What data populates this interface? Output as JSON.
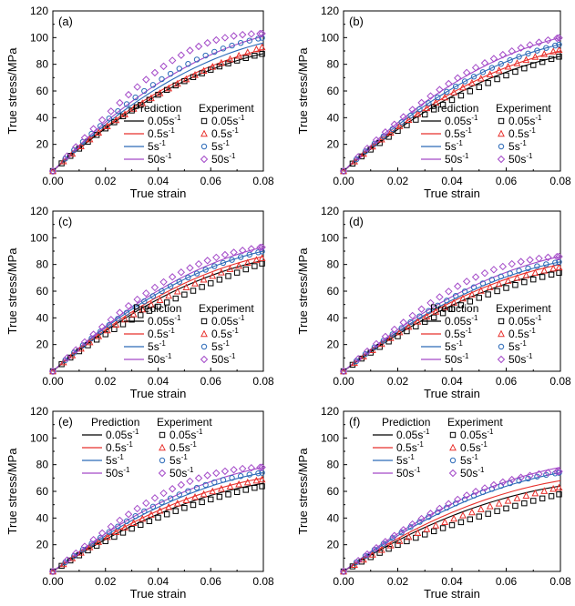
{
  "colors": {
    "c005": "#000000",
    "c05": "#e8302c",
    "c5": "#2c6ab8",
    "c50": "#a349c8"
  },
  "legend": {
    "pred_title": "Prediction",
    "exp_title": "Experiment",
    "unit": "s",
    "exp": "-1",
    "rates": [
      "0.05",
      "0.5",
      "5",
      "50"
    ]
  },
  "chart_data": [
    {
      "type": "line+scatter",
      "panel": "(a)",
      "legend_position": "bottom-right",
      "xlabel": "True strain",
      "ylabel": "True stress/MPa",
      "xlim": [
        0,
        0.08
      ],
      "ylim": [
        0,
        120
      ],
      "xticks": [
        "0.00",
        "0.02",
        "0.04",
        "0.06",
        "0.08"
      ],
      "yticks": [
        "20",
        "40",
        "60",
        "80",
        "100",
        "120"
      ],
      "series": [
        {
          "name": "0.05 s-1",
          "predicted_end": 88,
          "experiment_end": 88,
          "exp_scale": 1.0
        },
        {
          "name": "0.5 s-1",
          "predicted_end": 91,
          "experiment_end": 93,
          "exp_scale": 0.97
        },
        {
          "name": "5 s-1",
          "predicted_end": 96,
          "experiment_end": 100,
          "exp_scale": 1.02
        },
        {
          "name": "50 s-1",
          "predicted_end": 101,
          "experiment_end": 103,
          "exp_scale": 1.08
        }
      ]
    },
    {
      "type": "line+scatter",
      "panel": "(b)",
      "legend_position": "bottom-right",
      "xlabel": "True strain",
      "ylabel": "True stress/MPa",
      "xlim": [
        0,
        0.08
      ],
      "ylim": [
        0,
        120
      ],
      "xticks": [
        "0.00",
        "0.02",
        "0.04",
        "0.06",
        "0.08"
      ],
      "yticks": [
        "20",
        "40",
        "60",
        "80",
        "100",
        "120"
      ],
      "series": [
        {
          "name": "0.05 s-1",
          "predicted_end": 86,
          "experiment_end": 86,
          "exp_scale": 0.97
        },
        {
          "name": "0.5 s-1",
          "predicted_end": 90,
          "experiment_end": 91,
          "exp_scale": 0.99
        },
        {
          "name": "5 s-1",
          "predicted_end": 95,
          "experiment_end": 95,
          "exp_scale": 1.0
        },
        {
          "name": "50 s-1",
          "predicted_end": 100,
          "experiment_end": 100,
          "exp_scale": 1.02
        }
      ]
    },
    {
      "type": "line+scatter",
      "panel": "(c)",
      "legend_position": "bottom-right",
      "xlabel": "True strain",
      "ylabel": "True stress/MPa",
      "xlim": [
        0,
        0.08
      ],
      "ylim": [
        0,
        120
      ],
      "xticks": [
        "0.00",
        "0.02",
        "0.04",
        "0.06",
        "0.08"
      ],
      "yticks": [
        "20",
        "40",
        "60",
        "80",
        "100",
        "120"
      ],
      "series": [
        {
          "name": "0.05 s-1",
          "predicted_end": 83,
          "experiment_end": 81,
          "exp_scale": 0.95
        },
        {
          "name": "0.5 s-1",
          "predicted_end": 86,
          "experiment_end": 85,
          "exp_scale": 0.97
        },
        {
          "name": "5 s-1",
          "predicted_end": 90,
          "experiment_end": 90,
          "exp_scale": 1.0
        },
        {
          "name": "50 s-1",
          "predicted_end": 93,
          "experiment_end": 93,
          "exp_scale": 1.04
        }
      ]
    },
    {
      "type": "line+scatter",
      "panel": "(d)",
      "legend_position": "bottom-right",
      "xlabel": "True strain",
      "ylabel": "True stress/MPa",
      "xlim": [
        0,
        0.08
      ],
      "ylim": [
        0,
        120
      ],
      "xticks": [
        "0.00",
        "0.02",
        "0.04",
        "0.06",
        "0.08"
      ],
      "yticks": [
        "20",
        "40",
        "60",
        "80",
        "100",
        "120"
      ],
      "series": [
        {
          "name": "0.05 s-1",
          "predicted_end": 76,
          "experiment_end": 74,
          "exp_scale": 0.98
        },
        {
          "name": "0.5 s-1",
          "predicted_end": 80,
          "experiment_end": 78,
          "exp_scale": 1.0
        },
        {
          "name": "5 s-1",
          "predicted_end": 82,
          "experiment_end": 82,
          "exp_scale": 1.02
        },
        {
          "name": "50 s-1",
          "predicted_end": 86,
          "experiment_end": 86,
          "exp_scale": 1.06
        }
      ]
    },
    {
      "type": "line+scatter",
      "panel": "(e)",
      "legend_position": "top-left",
      "xlabel": "True strain",
      "ylabel": "True stress/MPa",
      "xlim": [
        0,
        0.08
      ],
      "ylim": [
        0,
        120
      ],
      "xticks": [
        "0.00",
        "0.02",
        "0.04",
        "0.06",
        "0.08"
      ],
      "yticks": [
        "20",
        "40",
        "60",
        "80",
        "100",
        "120"
      ],
      "series": [
        {
          "name": "0.05 s-1",
          "predicted_end": 66,
          "experiment_end": 64,
          "exp_scale": 0.98
        },
        {
          "name": "0.5 s-1",
          "predicted_end": 70,
          "experiment_end": 69,
          "exp_scale": 1.0
        },
        {
          "name": "5 s-1",
          "predicted_end": 74,
          "experiment_end": 74,
          "exp_scale": 1.03
        },
        {
          "name": "50 s-1",
          "predicted_end": 78,
          "experiment_end": 78,
          "exp_scale": 1.07
        }
      ]
    },
    {
      "type": "line+scatter",
      "panel": "(f)",
      "legend_position": "top-left",
      "xlabel": "True strain",
      "ylabel": "True stress/MPa",
      "xlim": [
        0,
        0.08
      ],
      "ylim": [
        0,
        120
      ],
      "xticks": [
        "0.00",
        "0.02",
        "0.04",
        "0.06",
        "0.08"
      ],
      "yticks": [
        "20",
        "40",
        "60",
        "80",
        "100",
        "120"
      ],
      "series": [
        {
          "name": "0.05 s-1",
          "predicted_end": 64,
          "experiment_end": 58,
          "exp_scale": 0.95
        },
        {
          "name": "0.5 s-1",
          "predicted_end": 68,
          "experiment_end": 63,
          "exp_scale": 0.97
        },
        {
          "name": "5 s-1",
          "predicted_end": 74,
          "experiment_end": 74,
          "exp_scale": 1.02
        },
        {
          "name": "50 s-1",
          "predicted_end": 78,
          "experiment_end": 75,
          "exp_scale": 1.04
        }
      ]
    }
  ]
}
